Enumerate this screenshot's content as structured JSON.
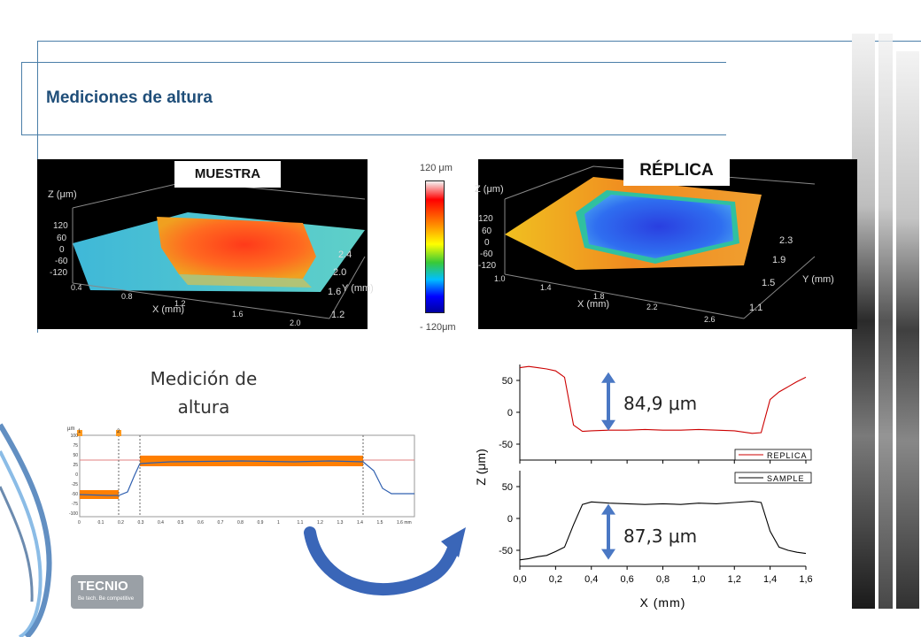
{
  "slide": {
    "title": "Mediciones de altura"
  },
  "surfaces": {
    "muestra": {
      "label": "MUESTRA",
      "z_axis_label": "Z (μm)",
      "z_ticks": [
        "120",
        "60",
        "0",
        "-60",
        "-120"
      ],
      "x_axis_label": "X (mm)",
      "x_ticks": [
        "0.4",
        "0.8",
        "1.2",
        "1.6",
        "2.0"
      ],
      "y_axis_label": "Y (mm)",
      "y_ticks": [
        "2.4",
        "2.0",
        "1.6",
        "1.2"
      ]
    },
    "replica": {
      "label": "RÉPLICA",
      "z_axis_label": "Z (μm)",
      "z_ticks": [
        "120",
        "60",
        "0",
        "-60",
        "-120"
      ],
      "x_axis_label": "X (mm)",
      "x_ticks": [
        "1.0",
        "1.4",
        "1.8",
        "2.2",
        "2.6"
      ],
      "y_axis_label": "Y (mm)",
      "y_ticks": [
        "2.3",
        "1.9",
        "1.5",
        "1.1"
      ]
    },
    "colorbar": {
      "top_label": "120 μm",
      "bottom_label": "- 120μm"
    }
  },
  "measurement_label": "Medición de altura",
  "profile_chart": {
    "unit_label": "µm",
    "y_ticks": [
      "100",
      "75",
      "50",
      "25",
      "0",
      "-25",
      "-50",
      "-75",
      "-100"
    ],
    "x_ticks": [
      "0",
      "0.1",
      "0.2",
      "0.3",
      "0.4",
      "0.5",
      "0.6",
      "0.7",
      "0.8",
      "0.9",
      "1",
      "1.1",
      "1.2",
      "1.3",
      "1.4",
      "1.5",
      "1.6 mm"
    ],
    "cursor_labels": [
      "1",
      "2"
    ]
  },
  "chart_data": [
    {
      "type": "line",
      "title": "",
      "xlabel": "X (mm)",
      "ylabel": "Z (μm)",
      "panels": [
        {
          "legend": "REPLICA",
          "color": "#cc0000",
          "yticks": [
            50,
            0,
            -50
          ],
          "ylim": [
            -75,
            75
          ],
          "annotation": "84,9 μm",
          "x": [
            0.0,
            0.05,
            0.1,
            0.15,
            0.2,
            0.25,
            0.3,
            0.35,
            0.4,
            0.5,
            0.6,
            0.7,
            0.8,
            0.9,
            1.0,
            1.1,
            1.2,
            1.3,
            1.35,
            1.4,
            1.45,
            1.5,
            1.55,
            1.6
          ],
          "y": [
            70,
            72,
            70,
            68,
            65,
            55,
            -20,
            -30,
            -29,
            -28,
            -28,
            -27,
            -28,
            -28,
            -27,
            -28,
            -29,
            -33,
            -32,
            20,
            32,
            40,
            48,
            55
          ]
        },
        {
          "legend": "SAMPLE",
          "color": "#000000",
          "yticks": [
            50,
            0,
            -50
          ],
          "ylim": [
            -75,
            75
          ],
          "annotation": "87,3 μm",
          "x": [
            0.0,
            0.05,
            0.1,
            0.15,
            0.2,
            0.25,
            0.3,
            0.35,
            0.4,
            0.5,
            0.6,
            0.7,
            0.8,
            0.9,
            1.0,
            1.1,
            1.2,
            1.3,
            1.35,
            1.4,
            1.45,
            1.5,
            1.55,
            1.6
          ],
          "y": [
            -65,
            -63,
            -60,
            -58,
            -52,
            -45,
            -10,
            22,
            26,
            24,
            23,
            22,
            23,
            22,
            24,
            23,
            25,
            27,
            25,
            -20,
            -45,
            -50,
            -53,
            -55
          ]
        }
      ],
      "xticks": [
        "0,0",
        "0,2",
        "0,4",
        "0,6",
        "0,8",
        "1,0",
        "1,2",
        "1,4",
        "1,6"
      ],
      "xlim": [
        0,
        1.6
      ]
    }
  ],
  "logo": {
    "name": "TECNIO",
    "tagline": "Be tech. Be competitive"
  },
  "colors": {
    "accent": "#1f4e79",
    "arrow": "#4472c4",
    "orange": "#ff7f00"
  }
}
